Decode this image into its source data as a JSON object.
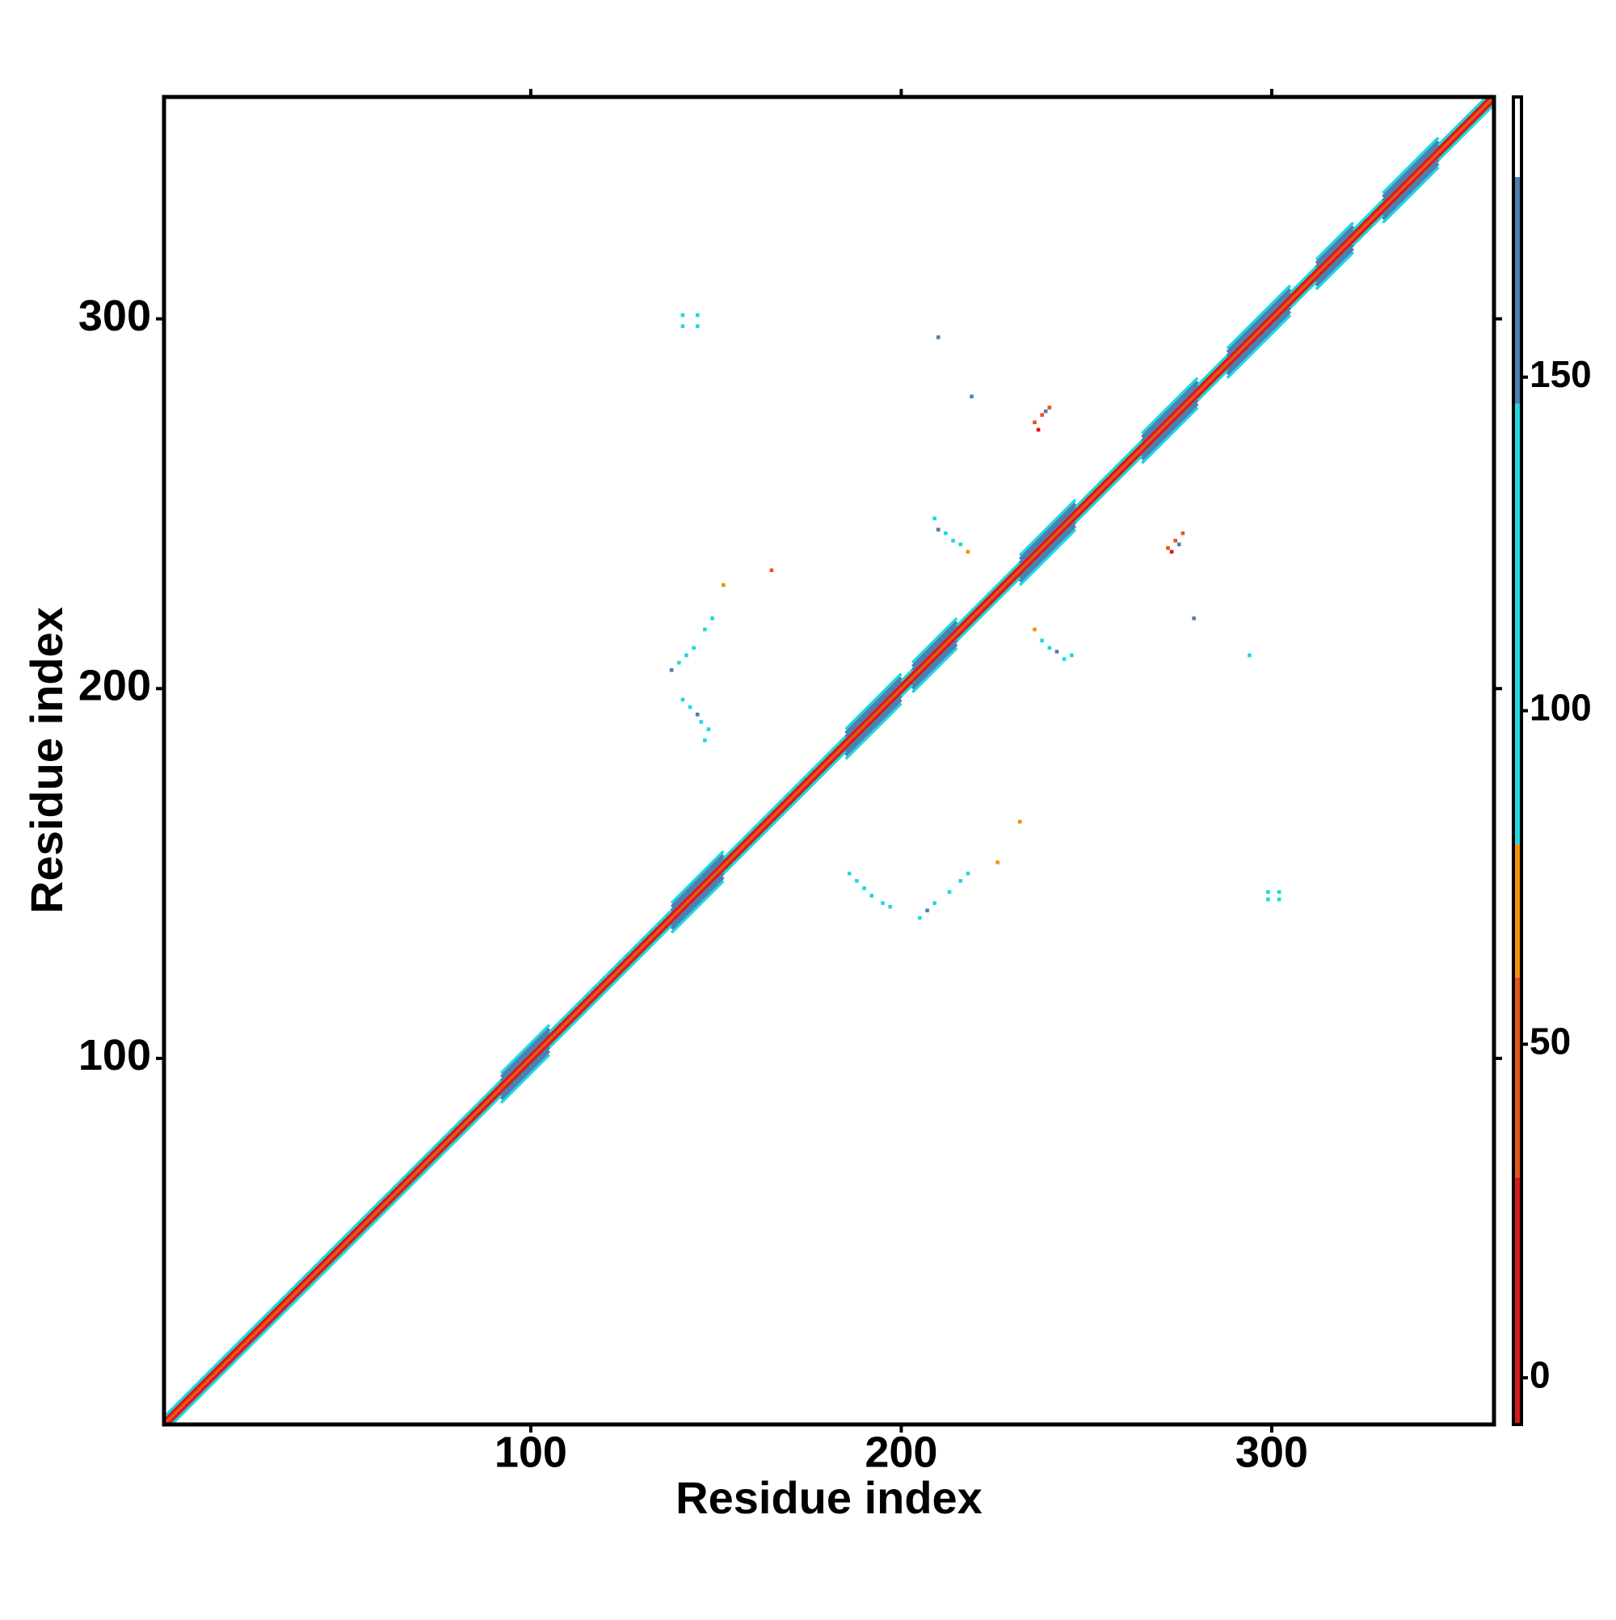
{
  "chart_data": {
    "type": "heatmap",
    "xlabel": "Residue index",
    "ylabel": "Residue index",
    "xlim": [
      1,
      360
    ],
    "ylim": [
      1,
      360
    ],
    "xticks": [
      100,
      200,
      300
    ],
    "yticks": [
      100,
      200,
      300
    ],
    "colorbar": {
      "lim": [
        -7,
        192
      ],
      "ticks": [
        0,
        50,
        100,
        150
      ],
      "bins": [
        -7,
        30,
        60,
        80,
        146,
        180,
        192
      ],
      "colors": [
        "#d7191c",
        "#e8551a",
        "#f0900a",
        "#1fd8e0",
        "#4f7fb0",
        "#ffffff"
      ]
    },
    "strips": [
      {
        "x": [
          1,
          360
        ],
        "offset": 2,
        "value": 100
      },
      {
        "x": [
          1,
          360
        ],
        "offset": -2,
        "value": 100
      },
      {
        "x": [
          1,
          360
        ],
        "offset": 1,
        "value": 10
      },
      {
        "x": [
          1,
          360
        ],
        "offset": -1,
        "value": 10
      },
      {
        "x": [
          1,
          360
        ],
        "offset": 0,
        "value": 45
      },
      {
        "x": [
          92,
          105
        ],
        "offset": 4,
        "value": 100
      },
      {
        "x": [
          92,
          105
        ],
        "offset": -4,
        "value": 100
      },
      {
        "x": [
          92,
          105
        ],
        "offset": 3,
        "value": 160
      },
      {
        "x": [
          92,
          105
        ],
        "offset": -3,
        "value": 160
      },
      {
        "x": [
          92,
          105
        ],
        "offset": 2,
        "value": 160
      },
      {
        "x": [
          92,
          105
        ],
        "offset": -2,
        "value": 160
      },
      {
        "x": [
          138,
          152
        ],
        "offset": 4,
        "value": 100
      },
      {
        "x": [
          138,
          152
        ],
        "offset": -4,
        "value": 100
      },
      {
        "x": [
          138,
          152
        ],
        "offset": 3,
        "value": 160
      },
      {
        "x": [
          138,
          152
        ],
        "offset": -3,
        "value": 160
      },
      {
        "x": [
          138,
          152
        ],
        "offset": 2,
        "value": 160
      },
      {
        "x": [
          138,
          152
        ],
        "offset": -2,
        "value": 160
      },
      {
        "x": [
          185,
          200
        ],
        "offset": 4,
        "value": 100
      },
      {
        "x": [
          185,
          200
        ],
        "offset": -4,
        "value": 100
      },
      {
        "x": [
          185,
          200
        ],
        "offset": 3,
        "value": 160
      },
      {
        "x": [
          185,
          200
        ],
        "offset": -3,
        "value": 160
      },
      {
        "x": [
          185,
          200
        ],
        "offset": 2,
        "value": 160
      },
      {
        "x": [
          185,
          200
        ],
        "offset": -2,
        "value": 160
      },
      {
        "x": [
          203,
          215
        ],
        "offset": 4,
        "value": 100
      },
      {
        "x": [
          203,
          215
        ],
        "offset": -4,
        "value": 100
      },
      {
        "x": [
          203,
          215
        ],
        "offset": 3,
        "value": 160
      },
      {
        "x": [
          203,
          215
        ],
        "offset": -3,
        "value": 160
      },
      {
        "x": [
          203,
          215
        ],
        "offset": 2,
        "value": 160
      },
      {
        "x": [
          203,
          215
        ],
        "offset": -2,
        "value": 160
      },
      {
        "x": [
          232,
          247
        ],
        "offset": 4,
        "value": 100
      },
      {
        "x": [
          232,
          247
        ],
        "offset": -4,
        "value": 100
      },
      {
        "x": [
          232,
          247
        ],
        "offset": 3,
        "value": 160
      },
      {
        "x": [
          232,
          247
        ],
        "offset": -3,
        "value": 160
      },
      {
        "x": [
          232,
          247
        ],
        "offset": 2,
        "value": 160
      },
      {
        "x": [
          232,
          247
        ],
        "offset": -2,
        "value": 160
      },
      {
        "x": [
          265,
          280
        ],
        "offset": 4,
        "value": 100
      },
      {
        "x": [
          265,
          280
        ],
        "offset": -4,
        "value": 100
      },
      {
        "x": [
          265,
          280
        ],
        "offset": 3,
        "value": 160
      },
      {
        "x": [
          265,
          280
        ],
        "offset": -3,
        "value": 160
      },
      {
        "x": [
          265,
          280
        ],
        "offset": 2,
        "value": 160
      },
      {
        "x": [
          265,
          280
        ],
        "offset": -2,
        "value": 160
      },
      {
        "x": [
          288,
          305
        ],
        "offset": 4,
        "value": 100
      },
      {
        "x": [
          288,
          305
        ],
        "offset": -4,
        "value": 100
      },
      {
        "x": [
          288,
          305
        ],
        "offset": 3,
        "value": 160
      },
      {
        "x": [
          288,
          305
        ],
        "offset": -3,
        "value": 160
      },
      {
        "x": [
          288,
          305
        ],
        "offset": 2,
        "value": 160
      },
      {
        "x": [
          288,
          305
        ],
        "offset": -2,
        "value": 160
      },
      {
        "x": [
          312,
          322
        ],
        "offset": 4,
        "value": 100
      },
      {
        "x": [
          312,
          322
        ],
        "offset": -4,
        "value": 100
      },
      {
        "x": [
          312,
          322
        ],
        "offset": 3,
        "value": 160
      },
      {
        "x": [
          312,
          322
        ],
        "offset": -3,
        "value": 160
      },
      {
        "x": [
          312,
          322
        ],
        "offset": 2,
        "value": 160
      },
      {
        "x": [
          312,
          322
        ],
        "offset": -2,
        "value": 160
      },
      {
        "x": [
          330,
          345
        ],
        "offset": 4,
        "value": 100
      },
      {
        "x": [
          330,
          345
        ],
        "offset": -4,
        "value": 100
      },
      {
        "x": [
          330,
          345
        ],
        "offset": 3,
        "value": 160
      },
      {
        "x": [
          330,
          345
        ],
        "offset": -3,
        "value": 160
      },
      {
        "x": [
          330,
          345
        ],
        "offset": 2,
        "value": 160
      },
      {
        "x": [
          330,
          345
        ],
        "offset": -2,
        "value": 160
      }
    ],
    "cells": {
      "x": [
        141,
        145,
        141,
        145,
        299,
        302,
        299,
        302,
        236,
        238,
        240,
        237,
        239,
        272,
        274,
        276,
        273,
        275,
        209,
        210,
        212,
        214,
        216,
        218,
        236,
        238,
        240,
        242,
        244,
        246,
        138,
        140,
        142,
        144,
        147,
        149,
        205,
        207,
        209,
        213,
        216,
        218,
        141,
        143,
        145,
        146,
        148,
        147,
        186,
        188,
        190,
        192,
        195,
        197,
        165,
        152,
        232,
        226,
        210,
        219,
        279,
        294
      ],
      "y": [
        301,
        301,
        298,
        298,
        143,
        143,
        145,
        145,
        272,
        274,
        276,
        270,
        275,
        238,
        240,
        242,
        237,
        239,
        246,
        243,
        242,
        240,
        239,
        237,
        216,
        213,
        211,
        210,
        208,
        209,
        205,
        207,
        209,
        211,
        216,
        219,
        138,
        140,
        142,
        145,
        148,
        150,
        197,
        195,
        193,
        191,
        189,
        186,
        150,
        148,
        146,
        144,
        142,
        141,
        232,
        228,
        164,
        153,
        295,
        279,
        219,
        209
      ],
      "values": [
        100,
        100,
        100,
        100,
        100,
        100,
        100,
        100,
        40,
        40,
        40,
        20,
        160,
        40,
        40,
        40,
        20,
        160,
        100,
        160,
        100,
        100,
        100,
        70,
        70,
        100,
        100,
        160,
        100,
        100,
        160,
        100,
        100,
        100,
        100,
        100,
        100,
        160,
        100,
        100,
        100,
        100,
        100,
        100,
        160,
        100,
        100,
        100,
        100,
        100,
        100,
        100,
        100,
        100,
        40,
        70,
        70,
        70,
        160,
        160,
        160,
        100
      ]
    }
  }
}
